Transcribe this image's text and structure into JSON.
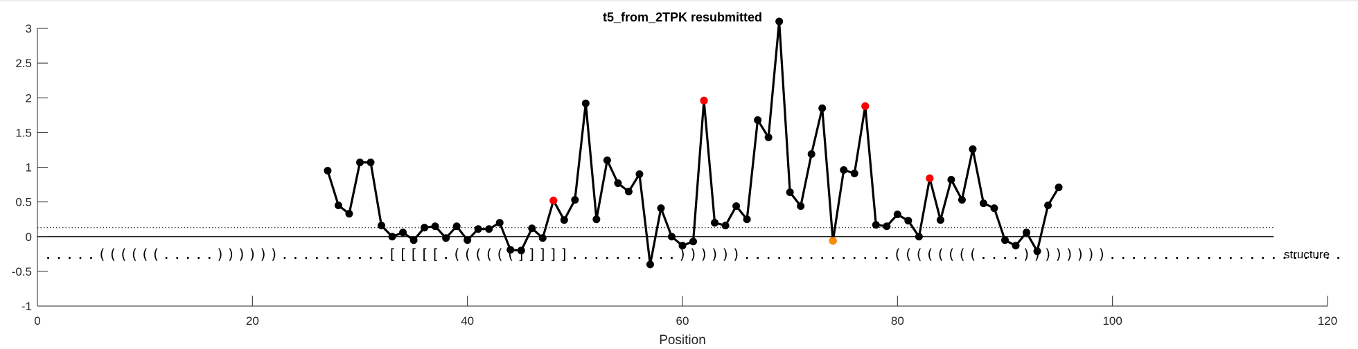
{
  "chart_data": {
    "type": "line",
    "title": "t5_from_2TPK resubmitted",
    "xlabel": "Position",
    "ylabel": "",
    "xlim": [
      0,
      120
    ],
    "ylim": [
      -1,
      3
    ],
    "xticks": [
      0,
      20,
      40,
      60,
      80,
      100,
      120
    ],
    "yticks": [
      -1,
      -0.5,
      0,
      0.5,
      1,
      1.5,
      2,
      2.5,
      3
    ],
    "reference_lines": {
      "zero": 0,
      "dotted": 0.13,
      "x_range": [
        0,
        115
      ]
    },
    "series": [
      {
        "x": [
          27,
          28,
          29,
          30,
          31,
          32,
          33,
          34,
          35,
          36,
          37,
          38,
          39,
          40,
          41,
          42,
          43,
          44,
          45,
          46,
          47,
          48,
          49,
          50,
          51,
          52,
          53,
          54,
          55,
          56,
          57,
          58,
          59,
          60,
          61,
          62,
          63,
          64,
          65,
          66,
          67,
          68,
          69,
          70,
          71,
          72,
          73,
          74,
          75,
          76,
          77,
          78,
          79,
          80,
          81,
          82,
          83,
          84,
          85,
          86,
          87,
          88,
          89,
          90,
          91,
          92,
          93,
          94,
          95
        ],
        "values": [
          0.95,
          0.45,
          0.33,
          1.07,
          1.07,
          0.16,
          0.0,
          0.06,
          -0.05,
          0.13,
          0.15,
          -0.02,
          0.15,
          -0.05,
          0.11,
          0.11,
          0.2,
          -0.19,
          -0.2,
          0.12,
          -0.02,
          0.52,
          0.24,
          0.53,
          1.92,
          0.25,
          1.1,
          0.77,
          0.65,
          0.9,
          -0.4,
          0.41,
          0.0,
          -0.13,
          -0.07,
          1.96,
          0.2,
          0.16,
          0.44,
          0.25,
          1.68,
          1.43,
          3.1,
          0.64,
          0.44,
          1.19,
          1.85,
          -0.06,
          0.96,
          0.91,
          1.88,
          0.17,
          0.15,
          0.32,
          0.23,
          0.0,
          0.84,
          0.24,
          0.82,
          0.53,
          1.26,
          0.48,
          0.41,
          -0.05,
          -0.13,
          0.06,
          -0.21,
          0.45,
          0.71
        ],
        "color": "#000000"
      }
    ],
    "highlight_points": [
      {
        "x": 48,
        "y": 0.52,
        "color": "#ff0000"
      },
      {
        "x": 62,
        "y": 1.96,
        "color": "#ff0000"
      },
      {
        "x": 77,
        "y": 1.88,
        "color": "#ff0000"
      },
      {
        "x": 83,
        "y": 0.84,
        "color": "#ff0000"
      },
      {
        "x": 74,
        "y": -0.06,
        "color": "#ff8c00"
      }
    ],
    "structure": {
      "label": "structure",
      "y": -0.25,
      "x_start": 1,
      "sequence": ".....((((((.....))))))..........[[[[[.((((((]]]]]..........))))))..............((((((((....))))))))......................"
    }
  }
}
